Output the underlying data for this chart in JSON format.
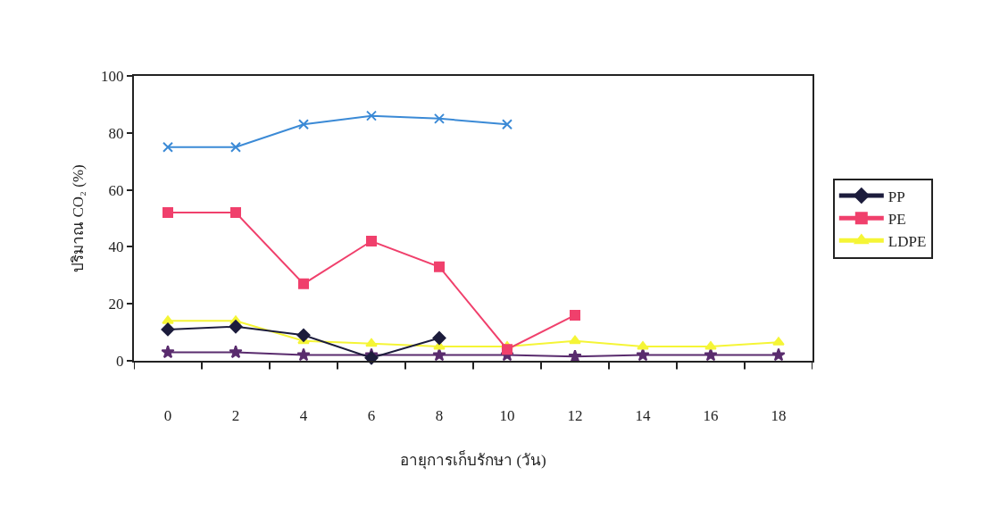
{
  "chart_data": {
    "type": "line",
    "xlabel": "อายุการเก็บรักษา (วัน)",
    "ylabel": "ปริมาณ CO₂ (%)",
    "categories": [
      "0",
      "2",
      "4",
      "6",
      "8",
      "10",
      "12",
      "14",
      "16",
      "18"
    ],
    "series": [
      {
        "color": "#3b8ad6",
        "marker": "cross",
        "values": [
          75,
          75,
          83,
          86,
          85,
          83,
          null,
          null,
          null,
          null
        ]
      },
      {
        "name": "PP",
        "color": "#1c1c3c",
        "marker": "diamond",
        "values": [
          11,
          12,
          9,
          1,
          8,
          null,
          null,
          null,
          null,
          null
        ]
      },
      {
        "name": "PE",
        "color": "#f0406c",
        "marker": "square",
        "values": [
          52,
          52,
          27,
          42,
          33,
          4,
          16,
          null,
          null,
          null
        ]
      },
      {
        "name": "LDPE",
        "color": "#f5f536",
        "marker": "triangle",
        "values": [
          14,
          14,
          7,
          6,
          5,
          5,
          7,
          5,
          5,
          6.5
        ]
      },
      {
        "color": "#5a2c6e",
        "marker": "star",
        "values": [
          3,
          3,
          2,
          2,
          2,
          2,
          1.5,
          2,
          2,
          2
        ]
      }
    ],
    "ylim": [
      0,
      100
    ],
    "yticks": [
      0,
      20,
      40,
      60,
      80,
      100
    ],
    "legend": "right",
    "line_style": "solid"
  }
}
